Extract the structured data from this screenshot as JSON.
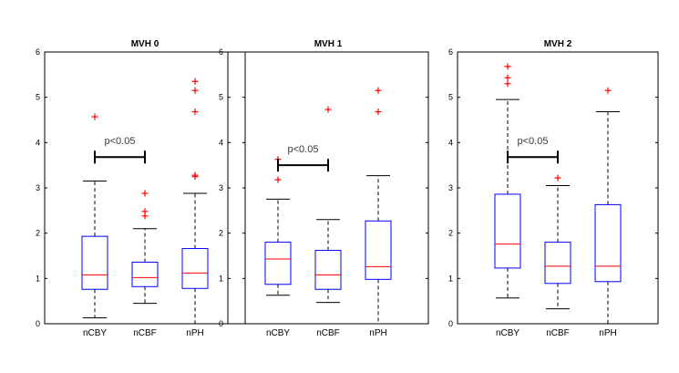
{
  "chart_data": [
    {
      "type": "box",
      "title": "MVH 0",
      "ylim": [
        0,
        6
      ],
      "yticks": [
        0,
        1,
        2,
        3,
        4,
        5,
        6
      ],
      "categories": [
        "nCBY",
        "nCBF",
        "nPH"
      ],
      "boxes": [
        {
          "whisker_low": 0.13,
          "q1": 0.76,
          "median": 1.08,
          "q3": 1.93,
          "whisker_high": 3.15,
          "outliers": [
            4.57
          ]
        },
        {
          "whisker_low": 0.45,
          "q1": 0.82,
          "median": 1.02,
          "q3": 1.36,
          "whisker_high": 2.1,
          "outliers": [
            2.38,
            2.48,
            2.88
          ]
        },
        {
          "whisker_low": 0.0,
          "q1": 0.78,
          "median": 1.12,
          "q3": 1.66,
          "whisker_high": 2.88,
          "outliers": [
            3.25,
            3.28,
            4.68,
            5.15,
            5.35
          ]
        }
      ],
      "annotation": {
        "text": "p<0.05",
        "from": 0,
        "to": 1,
        "y": 3.68
      }
    },
    {
      "type": "box",
      "title": "MVH 1",
      "ylim": [
        0,
        6
      ],
      "yticks": [
        0,
        1,
        2,
        3,
        4,
        5,
        6
      ],
      "categories": [
        "nCBY",
        "nCBF",
        "nPH"
      ],
      "boxes": [
        {
          "whisker_low": 0.63,
          "q1": 0.87,
          "median": 1.43,
          "q3": 1.8,
          "whisker_high": 2.75,
          "outliers": [
            3.18,
            3.63
          ]
        },
        {
          "whisker_low": 0.47,
          "q1": 0.76,
          "median": 1.08,
          "q3": 1.62,
          "whisker_high": 2.3,
          "outliers": [
            4.73
          ]
        },
        {
          "whisker_low": 0.0,
          "q1": 0.98,
          "median": 1.26,
          "q3": 2.27,
          "whisker_high": 3.27,
          "outliers": [
            4.68,
            5.15
          ]
        }
      ],
      "annotation": {
        "text": "p<0.05",
        "from": 0,
        "to": 1,
        "y": 3.5
      }
    },
    {
      "type": "box",
      "title": "MVH 2",
      "ylim": [
        0,
        6
      ],
      "yticks": [
        0,
        1,
        2,
        3,
        4,
        5,
        6
      ],
      "categories": [
        "nCBY",
        "nCBF",
        "nPH"
      ],
      "boxes": [
        {
          "whisker_low": 0.57,
          "q1": 1.23,
          "median": 1.76,
          "q3": 2.86,
          "whisker_high": 4.95,
          "outliers": [
            5.3,
            5.43,
            5.68
          ]
        },
        {
          "whisker_low": 0.33,
          "q1": 0.89,
          "median": 1.27,
          "q3": 1.8,
          "whisker_high": 3.05,
          "outliers": [
            3.22
          ]
        },
        {
          "whisker_low": 0.0,
          "q1": 0.93,
          "median": 1.27,
          "q3": 2.63,
          "whisker_high": 4.68,
          "outliers": [
            5.15
          ]
        }
      ],
      "annotation": {
        "text": "p<0.05",
        "from": 0,
        "to": 1,
        "y": 3.68
      }
    }
  ],
  "colors": {
    "box": "#0000ff",
    "median": "#ff0000",
    "outlier": "#ff0000",
    "whisker": "#000000",
    "annotation_text": "#3a3a3a"
  }
}
